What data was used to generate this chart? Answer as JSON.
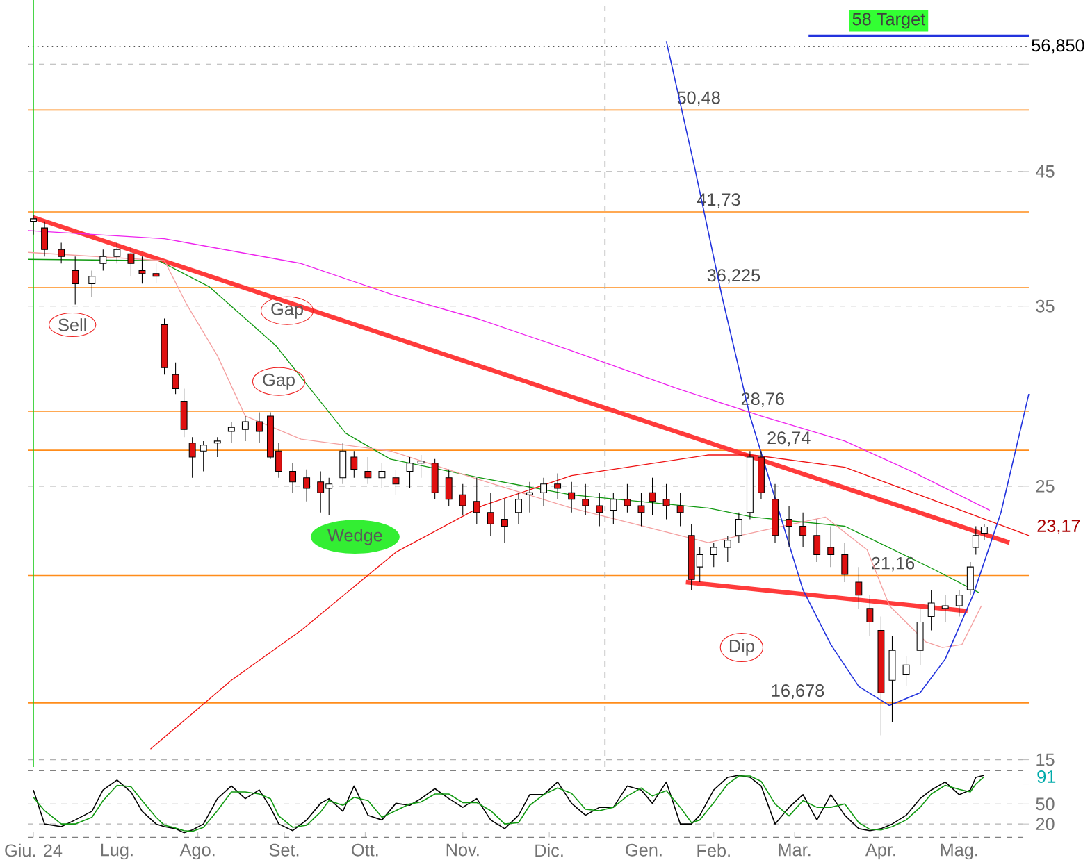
{
  "chart_data": [
    {
      "type": "candlestick",
      "log": true,
      "grid": "y",
      "tick_labels": "y",
      "xlim": [
        "2024-06-08",
        "2025-06-02"
      ],
      "ylim": [
        14.8,
        62
      ],
      "yticks": [
        15,
        25,
        35,
        45,
        {
          "value": 55,
          "label": null
        }
      ],
      "x": [
        "2024-06-10",
        "2024-06-14",
        "2024-06-20",
        "2024-06-25",
        "2024-07-01",
        "2024-07-05",
        "2024-07-10",
        "2024-07-15",
        "2024-07-19",
        "2024-07-24",
        "2024-07-27",
        "2024-07-31",
        "2024-08-03",
        "2024-08-06",
        "2024-08-10",
        "2024-08-15",
        "2024-08-20",
        "2024-08-25",
        "2024-08-30",
        "2024-09-03",
        "2024-09-06",
        "2024-09-11",
        "2024-09-16",
        "2024-09-21",
        "2024-09-24",
        "2024-09-29",
        "2024-10-03",
        "2024-10-08",
        "2024-10-13",
        "2024-10-18",
        "2024-10-23",
        "2024-10-27",
        "2024-11-01",
        "2024-11-06",
        "2024-11-11",
        "2024-11-16",
        "2024-11-21",
        "2024-11-26",
        "2024-12-01",
        "2024-12-05",
        "2024-12-10",
        "2024-12-15",
        "2024-12-20",
        "2024-12-25",
        "2024-12-30",
        "2025-01-04",
        "2025-01-09",
        "2025-01-14",
        "2025-01-18",
        "2025-01-23",
        "2025-01-28",
        "2025-02-01",
        "2025-02-04",
        "2025-02-09",
        "2025-02-14",
        "2025-02-18",
        "2025-02-22",
        "2025-02-26",
        "2025-03-03",
        "2025-03-08",
        "2025-03-13",
        "2025-03-18",
        "2025-03-23",
        "2025-03-28",
        "2025-04-02",
        "2025-04-06",
        "2025-04-10",
        "2025-04-14",
        "2025-04-19",
        "2025-04-24",
        "2025-04-28",
        "2025-05-03",
        "2025-05-08",
        "2025-05-12",
        "2025-05-14",
        "2025-05-17"
      ],
      "ohlc": [
        [
          41.0,
          41.5,
          40.0,
          41.2
        ],
        [
          40.5,
          41.0,
          38.4,
          38.9
        ],
        [
          38.9,
          39.4,
          37.9,
          38.4
        ],
        [
          37.4,
          38.4,
          35.1,
          36.5
        ],
        [
          36.5,
          37.4,
          35.6,
          37.0
        ],
        [
          37.9,
          38.9,
          37.4,
          38.4
        ],
        [
          38.4,
          39.4,
          37.9,
          38.9
        ],
        [
          38.6,
          39.1,
          37.0,
          37.9
        ],
        [
          37.4,
          38.4,
          36.5,
          37.2
        ],
        [
          37.2,
          37.9,
          36.5,
          37.0
        ],
        [
          33.8,
          34.2,
          30.8,
          31.2
        ],
        [
          30.8,
          31.5,
          29.7,
          30.0
        ],
        [
          29.3,
          30.0,
          27.4,
          27.8
        ],
        [
          27.1,
          27.4,
          25.4,
          26.4
        ],
        [
          26.7,
          27.2,
          25.7,
          27.0
        ],
        [
          27.1,
          27.4,
          26.4,
          27.2
        ],
        [
          27.7,
          28.2,
          27.1,
          27.9
        ],
        [
          27.8,
          28.5,
          27.2,
          28.2
        ],
        [
          28.2,
          28.7,
          27.1,
          27.7
        ],
        [
          28.5,
          28.7,
          26.3,
          26.4
        ],
        [
          26.7,
          27.1,
          25.4,
          25.7
        ],
        [
          25.7,
          26.1,
          24.7,
          25.2
        ],
        [
          25.4,
          25.8,
          24.3,
          24.9
        ],
        [
          25.2,
          25.7,
          23.8,
          24.7
        ],
        [
          24.9,
          25.4,
          23.7,
          25.1
        ],
        [
          25.4,
          27.1,
          25.1,
          26.7
        ],
        [
          26.4,
          26.7,
          25.4,
          25.8
        ],
        [
          25.7,
          26.4,
          25.1,
          25.4
        ],
        [
          25.4,
          26.1,
          24.9,
          25.7
        ],
        [
          25.4,
          25.8,
          24.6,
          25.1
        ],
        [
          25.7,
          26.4,
          24.9,
          26.1
        ],
        [
          26.1,
          26.5,
          25.4,
          26.2
        ],
        [
          26.1,
          26.3,
          24.4,
          24.7
        ],
        [
          25.4,
          25.8,
          24.1,
          24.4
        ],
        [
          24.6,
          25.1,
          23.7,
          24.1
        ],
        [
          24.3,
          25.4,
          23.3,
          23.8
        ],
        [
          23.8,
          24.7,
          22.8,
          23.3
        ],
        [
          23.5,
          24.4,
          22.5,
          23.2
        ],
        [
          23.8,
          24.7,
          23.3,
          24.4
        ],
        [
          24.6,
          25.2,
          23.8,
          24.7
        ],
        [
          24.7,
          25.4,
          24.1,
          25.1
        ],
        [
          25.1,
          25.6,
          24.4,
          24.9
        ],
        [
          24.7,
          25.2,
          23.8,
          24.4
        ],
        [
          24.4,
          25.1,
          23.7,
          24.1
        ],
        [
          24.1,
          24.7,
          23.2,
          23.8
        ],
        [
          23.9,
          24.7,
          23.3,
          24.4
        ],
        [
          24.4,
          25.1,
          23.8,
          24.1
        ],
        [
          24.1,
          24.7,
          23.2,
          23.8
        ],
        [
          24.7,
          25.4,
          23.7,
          24.3
        ],
        [
          24.4,
          25.1,
          23.5,
          24.1
        ],
        [
          24.1,
          24.7,
          23.2,
          23.8
        ],
        [
          22.8,
          23.3,
          20.6,
          21.0
        ],
        [
          21.5,
          22.3,
          20.9,
          22.0
        ],
        [
          22.0,
          22.5,
          21.5,
          22.3
        ],
        [
          22.3,
          22.8,
          21.7,
          22.6
        ],
        [
          22.8,
          23.8,
          22.5,
          23.5
        ],
        [
          23.8,
          26.7,
          23.5,
          26.4
        ],
        [
          26.4,
          26.7,
          24.4,
          24.7
        ],
        [
          24.4,
          25.1,
          22.5,
          22.8
        ],
        [
          23.5,
          24.1,
          22.3,
          23.2
        ],
        [
          23.2,
          23.8,
          22.3,
          22.8
        ],
        [
          22.8,
          23.5,
          21.7,
          22.0
        ],
        [
          22.3,
          23.2,
          21.5,
          22.0
        ],
        [
          22.0,
          22.5,
          20.9,
          21.2
        ],
        [
          20.9,
          21.5,
          19.9,
          20.4
        ],
        [
          19.9,
          20.4,
          18.9,
          19.4
        ],
        [
          19.1,
          19.6,
          15.7,
          17.0
        ],
        [
          17.4,
          18.9,
          16.1,
          18.4
        ],
        [
          17.6,
          18.2,
          17.2,
          17.9
        ],
        [
          18.4,
          19.9,
          17.9,
          19.4
        ],
        [
          19.6,
          20.6,
          19.1,
          20.1
        ],
        [
          19.9,
          20.4,
          19.4,
          20.0
        ],
        [
          20.0,
          20.6,
          19.6,
          20.4
        ],
        [
          20.6,
          21.7,
          20.4,
          21.5
        ],
        [
          22.3,
          23.2,
          22.0,
          22.8
        ],
        [
          22.9,
          23.3,
          22.6,
          23.17
        ]
      ],
      "series": [
        {
          "type": "line",
          "color": "#ff3b3b",
          "x": [
            "2024-06-10",
            "2025-05-26"
          ],
          "values": [
            41.3,
            22.5
          ]
        },
        {
          "type": "line",
          "color": "#ff3b3b",
          "x": [
            "2025-01-30",
            "2025-05-11"
          ],
          "values": [
            20.9,
            19.8
          ]
        },
        {
          "type": "line",
          "color": "#119911",
          "x": [
            "2024-06-08",
            "2024-07-25",
            "2024-08-12",
            "2024-09-05",
            "2024-09-30",
            "2024-10-16",
            "2024-11-17",
            "2024-12-20",
            "2025-02-07",
            "2025-02-23",
            "2025-03-28",
            "2025-04-29",
            "2025-05-15"
          ],
          "values": [
            38.2,
            38.1,
            36.3,
            32.5,
            27.6,
            26.3,
            25.4,
            24.6,
            24.0,
            23.6,
            23.2,
            21.4,
            20.5
          ]
        },
        {
          "type": "line",
          "color": "#ee22ee",
          "x": [
            "2024-06-08",
            "2024-07-27",
            "2024-09-14",
            "2024-10-16",
            "2024-11-16",
            "2024-12-20",
            "2025-01-27",
            "2025-02-26",
            "2025-03-28",
            "2025-04-21",
            "2025-05-19"
          ],
          "values": [
            40.3,
            39.7,
            37.9,
            35.8,
            34.2,
            32.2,
            30.0,
            28.5,
            27.2,
            25.7,
            23.9
          ]
        },
        {
          "type": "line",
          "color": "#ee1111",
          "x": [
            "2024-07-22",
            "2024-08-20",
            "2024-09-14",
            "2024-10-18",
            "2024-11-18",
            "2024-12-20",
            "2025-02-07",
            "2025-02-23",
            "2025-03-28",
            "2025-06-02"
          ],
          "values": [
            15.3,
            17.4,
            19.1,
            22.1,
            24.1,
            25.5,
            26.5,
            26.5,
            25.9,
            22.8
          ]
        },
        {
          "type": "line",
          "color": "#f4a0a0",
          "x": [
            "2024-06-08",
            "2024-07-27",
            "2024-08-04",
            "2024-08-15",
            "2024-08-25",
            "2024-09-14",
            "2024-10-16",
            "2024-11-17",
            "2024-12-20",
            "2025-02-07",
            "2025-02-26",
            "2025-03-21",
            "2025-04-05",
            "2025-04-13",
            "2025-04-26",
            "2025-05-02",
            "2025-05-09",
            "2025-05-16"
          ],
          "values": [
            38.7,
            38.1,
            35.1,
            31.9,
            28.5,
            27.3,
            26.7,
            25.3,
            24.0,
            22.5,
            23.0,
            23.6,
            22.2,
            20.0,
            18.7,
            18.5,
            18.6,
            20.0
          ]
        },
        {
          "type": "line",
          "color": "#2233dd",
          "x": [
            "2025-01-23",
            "2025-02-02",
            "2025-02-12",
            "2025-02-22",
            "2025-03-13",
            "2025-03-23",
            "2025-04-02",
            "2025-04-13",
            "2025-04-24",
            "2025-05-03",
            "2025-05-13",
            "2025-05-23",
            "2025-06-02"
          ],
          "values": [
            57.4,
            45.5,
            35.6,
            28.5,
            20.6,
            18.6,
            17.2,
            16.6,
            17.0,
            18.1,
            20.4,
            23.8,
            29.7
          ]
        }
      ],
      "ref_lines": [
        {
          "axis": "y",
          "value": 58,
          "label": "58 Target",
          "color": "#2233dd"
        },
        {
          "axis": "y",
          "value": 56.85,
          "label": "56,850",
          "color": "#555555",
          "line_style": "dotted"
        },
        {
          "axis": "y",
          "value": 50.48,
          "label": "50,48",
          "color": "#ff8c1a"
        },
        {
          "axis": "y",
          "value": 41.73,
          "label": "41,73",
          "color": "#ff8c1a"
        },
        {
          "axis": "y",
          "value": 36.225,
          "label": "36,225",
          "color": "#ff8c1a"
        },
        {
          "axis": "y",
          "value": 28.76,
          "label": "28,76",
          "color": "#ff8c1a"
        },
        {
          "axis": "y",
          "value": 26.74,
          "label": "26,74",
          "color": "#ff8c1a"
        },
        {
          "axis": "y",
          "value": 21.16,
          "label": "21,16",
          "color": "#ff8c1a"
        },
        {
          "axis": "y",
          "value": 16.678,
          "label": "16,678",
          "color": "#ff8c1a"
        },
        {
          "axis": "x",
          "value": "2024-06-10",
          "color": "#22cc22"
        },
        {
          "axis": "x",
          "value": "2025-01-01",
          "color": "#aaaaaa",
          "line_style": "dashed"
        }
      ],
      "annotations": [
        {
          "text": "Sell",
          "x": "2024-06-24",
          "y": 33.8
        },
        {
          "text": "Gap",
          "x": "2024-09-09",
          "y": 34.7
        },
        {
          "text": "Gap",
          "x": "2024-09-06",
          "y": 30.4
        },
        "Wedge",
        {
          "text": "Dip",
          "x": "2025-02-19",
          "y": 18.5
        },
        "23,17"
      ]
    },
    {
      "type": "line",
      "grid": "y",
      "xlim": [
        "2024-06-08",
        "2025-06-02"
      ],
      "ylim": [
        0,
        100
      ],
      "yticks": [
        20,
        50,
        {
          "value": 80,
          "label": null
        }
      ],
      "xticks": [
        {
          "value": "2024-06-10",
          "label": "Giu. 24"
        },
        {
          "value": "2024-07-10",
          "label": "Lug."
        },
        {
          "value": "2024-08-08",
          "label": "Ago."
        },
        {
          "value": "2024-09-08",
          "label": "Set."
        },
        {
          "value": "2024-10-07",
          "label": "Ott."
        },
        {
          "value": "2024-11-11",
          "label": "Nov."
        },
        {
          "value": "2024-12-12",
          "label": "Dic."
        },
        {
          "value": "2025-01-15",
          "label": "Gen."
        },
        {
          "value": "2025-02-09",
          "label": "Feb."
        },
        {
          "value": "2025-03-10",
          "label": "Mar."
        },
        {
          "value": "2025-04-10",
          "label": "Apr."
        },
        {
          "value": "2025-05-08",
          "label": "Mag."
        }
      ],
      "x": [
        "2024-06-10",
        "2024-06-14",
        "2024-06-20",
        "2024-06-25",
        "2024-07-01",
        "2024-07-05",
        "2024-07-10",
        "2024-07-15",
        "2024-07-19",
        "2024-07-24",
        "2024-07-27",
        "2024-07-31",
        "2024-08-03",
        "2024-08-06",
        "2024-08-10",
        "2024-08-15",
        "2024-08-20",
        "2024-08-25",
        "2024-08-30",
        "2024-09-03",
        "2024-09-06",
        "2024-09-11",
        "2024-09-16",
        "2024-09-21",
        "2024-09-24",
        "2024-09-29",
        "2024-10-03",
        "2024-10-08",
        "2024-10-13",
        "2024-10-18",
        "2024-10-23",
        "2024-10-27",
        "2024-11-01",
        "2024-11-06",
        "2024-11-11",
        "2024-11-16",
        "2024-11-21",
        "2024-11-26",
        "2024-12-01",
        "2024-12-05",
        "2024-12-10",
        "2024-12-15",
        "2024-12-20",
        "2024-12-25",
        "2024-12-30",
        "2025-01-04",
        "2025-01-09",
        "2025-01-14",
        "2025-01-18",
        "2025-01-23",
        "2025-01-28",
        "2025-02-01",
        "2025-02-04",
        "2025-02-09",
        "2025-02-14",
        "2025-02-18",
        "2025-02-22",
        "2025-02-26",
        "2025-03-03",
        "2025-03-08",
        "2025-03-13",
        "2025-03-18",
        "2025-03-23",
        "2025-03-28",
        "2025-04-02",
        "2025-04-06",
        "2025-04-10",
        "2025-04-14",
        "2025-04-19",
        "2025-04-24",
        "2025-04-28",
        "2025-05-03",
        "2025-05-08",
        "2025-05-12",
        "2025-05-14",
        "2025-05-17"
      ],
      "series": [
        {
          "color": "#000000",
          "values": [
            71,
            20,
            16,
            26,
            39,
            71,
            86,
            68,
            39,
            20,
            16,
            13,
            7,
            11,
            20,
            58,
            77,
            58,
            71,
            45,
            20,
            10,
            26,
            51,
            58,
            39,
            77,
            33,
            26,
            51,
            48,
            58,
            73,
            58,
            45,
            58,
            26,
            13,
            33,
            64,
            64,
            83,
            51,
            33,
            45,
            45,
            77,
            71,
            51,
            83,
            20,
            20,
            33,
            71,
            90,
            93,
            90,
            77,
            20,
            45,
            64,
            26,
            64,
            33,
            13,
            10,
            13,
            20,
            33,
            58,
            71,
            83,
            64,
            71,
            90,
            93
          ]
        },
        {
          "color": "#119911",
          "values": [
            60,
            40,
            20,
            20,
            30,
            55,
            78,
            76,
            55,
            30,
            18,
            14,
            10,
            9,
            15,
            40,
            68,
            68,
            65,
            58,
            32,
            15,
            18,
            38,
            55,
            48,
            60,
            55,
            30,
            40,
            50,
            53,
            65,
            65,
            52,
            52,
            40,
            20,
            22,
            48,
            64,
            74,
            66,
            42,
            40,
            45,
            62,
            74,
            62,
            70,
            45,
            22,
            26,
            52,
            80,
            92,
            92,
            84,
            50,
            32,
            55,
            45,
            45,
            50,
            22,
            12,
            11,
            16,
            26,
            45,
            65,
            78,
            72,
            68,
            80,
            91
          ]
        }
      ],
      "annotations": [
        "91"
      ]
    }
  ]
}
